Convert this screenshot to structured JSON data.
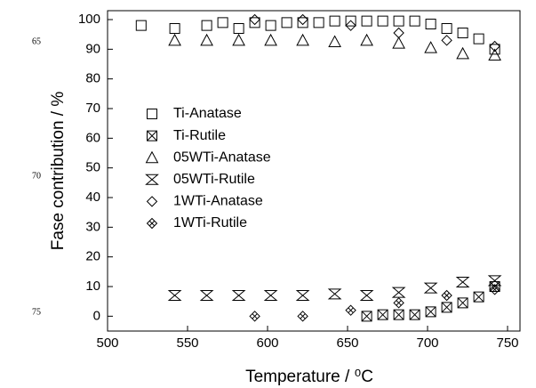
{
  "margin_labels": [
    "65",
    "70",
    "75"
  ],
  "chart_data": {
    "type": "scatter",
    "x_label": "Temperature / ⁰C",
    "y_label": "Fase contribution / %",
    "xlim": [
      500,
      750
    ],
    "xticks": [
      500,
      550,
      600,
      650,
      700,
      750
    ],
    "ylim": [
      -5,
      103
    ],
    "yticks": [
      0,
      10,
      20,
      30,
      40,
      50,
      60,
      70,
      80,
      90,
      100
    ],
    "legend": "upper left",
    "series": [
      {
        "name": "Ti-Anatase",
        "color": "#000000",
        "marker": "square",
        "x": [
          521,
          542,
          562,
          572,
          582,
          592,
          602,
          612,
          622,
          632,
          642,
          652,
          662,
          672,
          682,
          692,
          702,
          712,
          722,
          732,
          742
        ],
        "values": [
          98,
          97,
          98,
          99,
          97,
          99,
          98,
          99,
          99,
          99,
          99.5,
          99.5,
          99.5,
          99.5,
          99.5,
          99.5,
          98.5,
          97,
          95.5,
          93.5,
          90
        ]
      },
      {
        "name": "Ti-Rutile",
        "color": "#000000",
        "marker": "square-x",
        "x": [
          662,
          672,
          682,
          692,
          702,
          712,
          722,
          732,
          742
        ],
        "values": [
          0,
          0.5,
          0.5,
          0.5,
          1.5,
          3,
          4.5,
          6.5,
          10
        ]
      },
      {
        "name": "05WTi-Anatase",
        "color": "#000000",
        "marker": "triangle",
        "x": [
          542,
          562,
          582,
          602,
          622,
          642,
          662,
          682,
          702,
          722,
          742
        ],
        "values": [
          93,
          93,
          93,
          93,
          93,
          92.5,
          93,
          92,
          90.5,
          88.5,
          88
        ]
      },
      {
        "name": "05WTi-Rutile",
        "color": "#000000",
        "marker": "hourglass",
        "x": [
          542,
          562,
          582,
          602,
          622,
          642,
          662,
          682,
          702,
          722,
          742
        ],
        "values": [
          7,
          7,
          7,
          7,
          7,
          7.5,
          7,
          8,
          9.5,
          11.5,
          12
        ]
      },
      {
        "name": "1WTi-Anatase",
        "color": "#000000",
        "marker": "diamond",
        "x": [
          592,
          622,
          652,
          682,
          712,
          742
        ],
        "values": [
          100,
          100,
          98,
          95.5,
          93,
          91
        ]
      },
      {
        "name": "1WTi-Rutile",
        "color": "#000000",
        "marker": "diamond-x",
        "x": [
          592,
          622,
          652,
          682,
          712,
          742
        ],
        "values": [
          0,
          0,
          2,
          4.5,
          7,
          9
        ]
      }
    ]
  }
}
